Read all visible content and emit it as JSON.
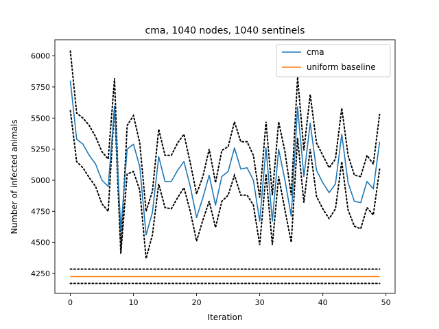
{
  "chart_data": {
    "type": "line",
    "title": "cma, 1040 nodes, 1040 sentinels",
    "xlabel": "Iteration",
    "ylabel": "Number of infected animals",
    "xlim": [
      -2.45,
      51.45
    ],
    "ylim": [
      4090,
      6130
    ],
    "xticks": [
      0,
      10,
      20,
      30,
      40,
      50
    ],
    "yticks": [
      4250,
      4500,
      4750,
      5000,
      5250,
      5500,
      5750,
      6000
    ],
    "legend_position": "upper right",
    "x": [
      0,
      1,
      2,
      3,
      4,
      5,
      6,
      7,
      8,
      9,
      10,
      11,
      12,
      13,
      14,
      15,
      16,
      17,
      18,
      19,
      20,
      21,
      22,
      23,
      24,
      25,
      26,
      27,
      28,
      29,
      30,
      31,
      32,
      33,
      34,
      35,
      36,
      37,
      38,
      39,
      40,
      41,
      42,
      43,
      44,
      45,
      46,
      47,
      48,
      49
    ],
    "series": [
      {
        "name": "cma",
        "color": "#1f77b4",
        "style": "solid",
        "values": [
          5800,
          5330,
          5290,
          5200,
          5130,
          5000,
          4950,
          5590,
          4600,
          5250,
          5290,
          5110,
          4560,
          4740,
          5190,
          4990,
          4990,
          5080,
          5150,
          4950,
          4700,
          4860,
          5040,
          4800,
          5030,
          5070,
          5260,
          5090,
          5100,
          5000,
          4670,
          5260,
          4670,
          5250,
          5000,
          4710,
          5590,
          5030,
          5460,
          5080,
          4980,
          4900,
          4970,
          5370,
          4980,
          4830,
          4820,
          4990,
          4930,
          5310
        ]
      },
      {
        "name": "uniform baseline",
        "color": "#ff7f0e",
        "style": "solid",
        "values": [
          4225,
          4225,
          4225,
          4225,
          4225,
          4225,
          4225,
          4225,
          4225,
          4225,
          4225,
          4225,
          4225,
          4225,
          4225,
          4225,
          4225,
          4225,
          4225,
          4225,
          4225,
          4225,
          4225,
          4225,
          4225,
          4225,
          4225,
          4225,
          4225,
          4225,
          4225,
          4225,
          4225,
          4225,
          4225,
          4225,
          4225,
          4225,
          4225,
          4225,
          4225,
          4225,
          4225,
          4225,
          4225,
          4225,
          4225,
          4225,
          4225,
          4225
        ]
      }
    ],
    "bands": [
      {
        "color": "#000000",
        "style": "dotted",
        "values": [
          6040,
          5540,
          5500,
          5440,
          5350,
          5230,
          5170,
          5820,
          4420,
          5440,
          5520,
          5300,
          4750,
          4910,
          5410,
          5200,
          5200,
          5300,
          5370,
          5140,
          4890,
          5030,
          5250,
          4980,
          5240,
          5270,
          5470,
          5310,
          5310,
          5200,
          4860,
          5470,
          4880,
          5470,
          5230,
          4880,
          5830,
          5240,
          5690,
          5300,
          5200,
          5100,
          5170,
          5580,
          5200,
          5040,
          5030,
          5200,
          5130,
          5530
        ]
      },
      {
        "color": "#000000",
        "style": "dotted",
        "values": [
          5560,
          5150,
          5100,
          5020,
          4950,
          4810,
          4750,
          5600,
          4410,
          5050,
          5070,
          4920,
          4370,
          4560,
          4970,
          4780,
          4770,
          4860,
          4940,
          4750,
          4510,
          4680,
          4830,
          4620,
          4830,
          4880,
          5040,
          4880,
          4880,
          4800,
          4480,
          5050,
          4480,
          5030,
          4760,
          4500,
          5340,
          4820,
          5250,
          4870,
          4770,
          4690,
          4770,
          5150,
          4760,
          4630,
          4610,
          4780,
          4720,
          5090
        ]
      },
      {
        "color": "#000000",
        "style": "dotted",
        "values": [
          4285,
          4285,
          4285,
          4285,
          4285,
          4285,
          4285,
          4285,
          4285,
          4285,
          4285,
          4285,
          4285,
          4285,
          4285,
          4285,
          4285,
          4285,
          4285,
          4285,
          4285,
          4285,
          4285,
          4285,
          4285,
          4285,
          4285,
          4285,
          4285,
          4285,
          4285,
          4285,
          4285,
          4285,
          4285,
          4285,
          4285,
          4285,
          4285,
          4285,
          4285,
          4285,
          4285,
          4285,
          4285,
          4285,
          4285,
          4285,
          4285,
          4285
        ]
      },
      {
        "color": "#000000",
        "style": "dotted",
        "values": [
          4170,
          4170,
          4170,
          4170,
          4170,
          4170,
          4170,
          4170,
          4170,
          4170,
          4170,
          4170,
          4170,
          4170,
          4170,
          4170,
          4170,
          4170,
          4170,
          4170,
          4170,
          4170,
          4170,
          4170,
          4170,
          4170,
          4170,
          4170,
          4170,
          4170,
          4170,
          4170,
          4170,
          4170,
          4170,
          4170,
          4170,
          4170,
          4170,
          4170,
          4170,
          4170,
          4170,
          4170,
          4170,
          4170,
          4170,
          4170,
          4170,
          4170
        ]
      }
    ]
  }
}
